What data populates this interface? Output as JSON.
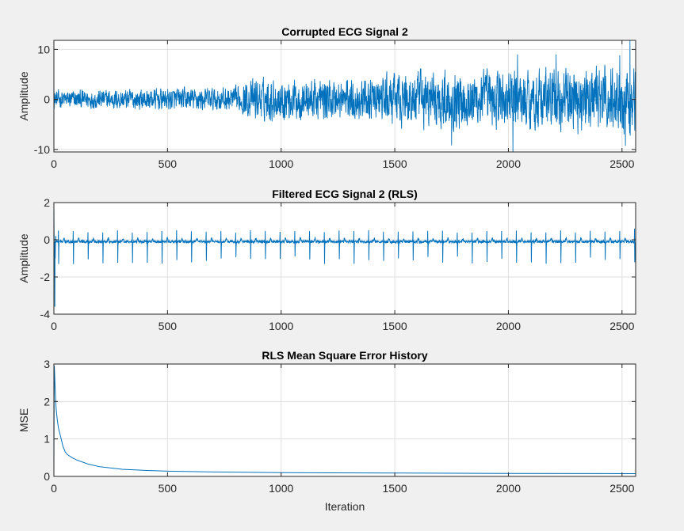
{
  "figure": {
    "background": "#f0f0f0",
    "line_color": "#0072bd",
    "grid_color": "#dfdfdf"
  },
  "chart_data": [
    {
      "type": "line",
      "title": "Corrupted ECG Signal 2",
      "xlabel": "",
      "ylabel": "Amplitude",
      "xlim": [
        0,
        2560
      ],
      "ylim": [
        -10.5,
        11.8
      ],
      "xticks": [
        0,
        500,
        1000,
        1500,
        2000,
        2500
      ],
      "yticks": [
        10,
        0,
        -10
      ],
      "ytick_labels": [
        "10",
        "0",
        "-10"
      ],
      "grid": true,
      "n_samples": 2560,
      "sample_step": 1,
      "envelope": {
        "x": [
          0,
          800,
          880,
          1000,
          1400,
          1500,
          1700,
          2000,
          2300,
          2560
        ],
        "amplitude": [
          1.3,
          1.8,
          3.0,
          3.0,
          3.0,
          3.8,
          4.2,
          4.2,
          4.6,
          4.8
        ]
      },
      "peaks": [
        {
          "x": 2535,
          "y": 11.8
        },
        {
          "x": 2040,
          "y": 9.0
        },
        {
          "x": 2210,
          "y": 9.0
        },
        {
          "x": 2490,
          "y": 8.8
        },
        {
          "x": 1750,
          "y": -9.2
        },
        {
          "x": 2020,
          "y": -10.5
        },
        {
          "x": 2515,
          "y": -9.3
        }
      ]
    },
    {
      "type": "line",
      "title": "Filtered ECG Signal 2 (RLS)",
      "xlabel": "",
      "ylabel": "Amplitude",
      "xlim": [
        0,
        2560
      ],
      "ylim": [
        -4,
        2
      ],
      "xticks": [
        0,
        500,
        1000,
        1500,
        2000,
        2500
      ],
      "yticks": [
        2,
        0,
        -2,
        -4
      ],
      "ytick_labels": [
        "2",
        "0",
        "-2",
        "-4"
      ],
      "grid": true,
      "n_samples": 2560,
      "sample_step": 1,
      "baseline": -0.1,
      "beat_period": 65,
      "beat_start": 20,
      "r_peak": 0.45,
      "s_trough": -1.2,
      "transient": [
        {
          "x": 0,
          "y": 1.8
        },
        {
          "x": 2,
          "y": -1.5
        },
        {
          "x": 4,
          "y": -3.6
        },
        {
          "x": 6,
          "y": -1.0
        },
        {
          "x": 8,
          "y": 0.2
        }
      ],
      "end_peaks": [
        {
          "x": 2555,
          "y": 0.6
        },
        {
          "x": 2559,
          "y": -1.1
        }
      ]
    },
    {
      "type": "line",
      "title": "RLS Mean Square Error History",
      "xlabel": "Iteration",
      "ylabel": "MSE",
      "xlim": [
        0,
        2560
      ],
      "ylim": [
        0,
        3
      ],
      "xticks": [
        0,
        500,
        1000,
        1500,
        2000,
        2500
      ],
      "yticks": [
        3,
        2,
        1,
        0
      ],
      "ytick_labels": [
        "3",
        "2",
        "1",
        "0"
      ],
      "grid": true,
      "points": {
        "x": [
          0,
          1,
          2,
          4,
          6,
          8,
          10,
          15,
          20,
          30,
          40,
          50,
          60,
          80,
          100,
          150,
          200,
          300,
          400,
          500,
          700,
          1000,
          1500,
          2000,
          2560
        ],
        "y": [
          0.2,
          2.0,
          2.95,
          2.6,
          2.3,
          2.0,
          1.8,
          1.5,
          1.3,
          1.05,
          0.8,
          0.65,
          0.58,
          0.5,
          0.44,
          0.33,
          0.26,
          0.19,
          0.16,
          0.14,
          0.12,
          0.1,
          0.09,
          0.08,
          0.075
        ]
      }
    }
  ]
}
